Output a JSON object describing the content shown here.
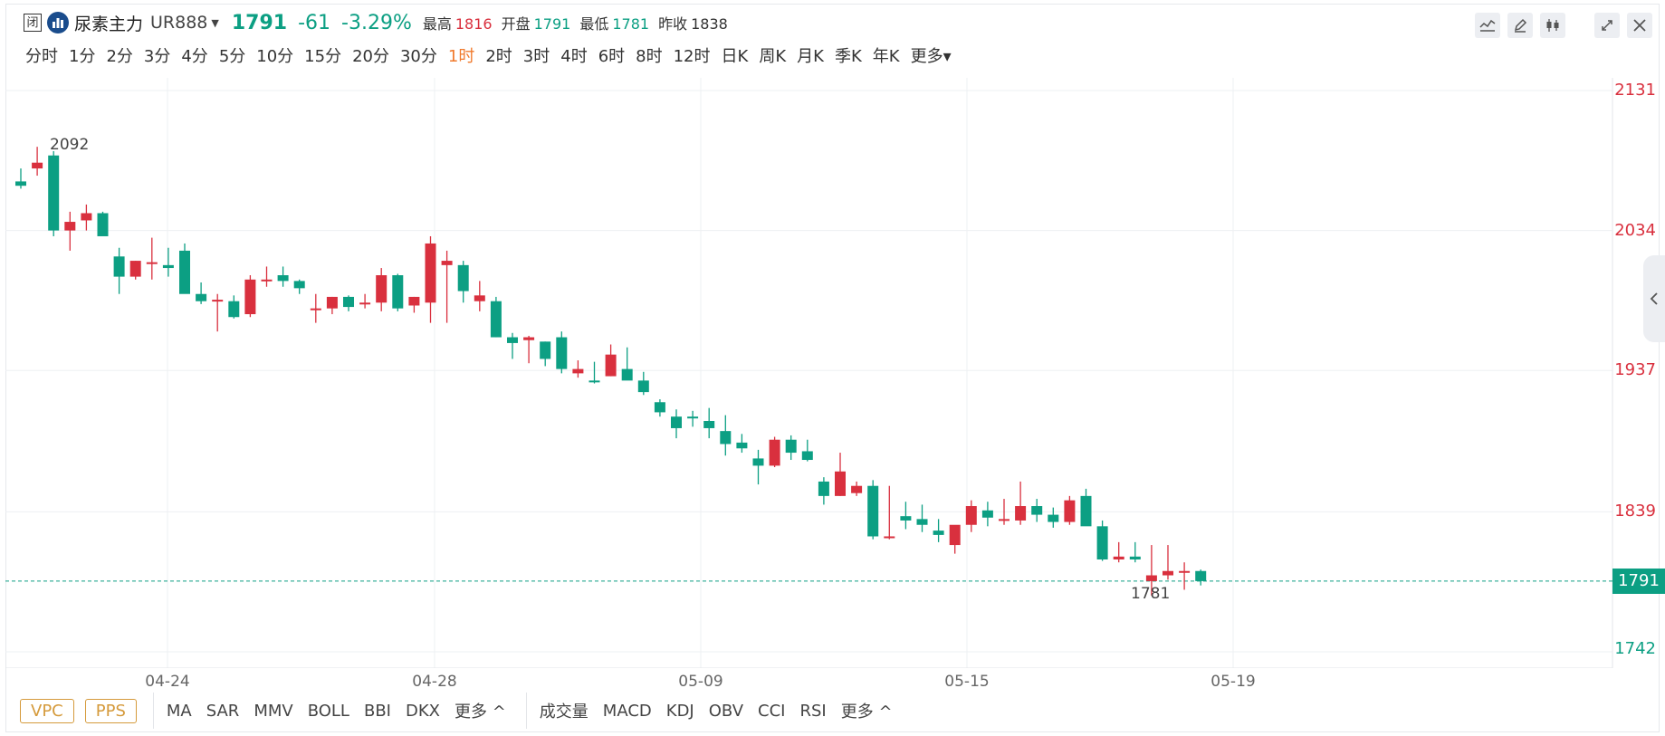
{
  "header": {
    "status": "闭",
    "name": "尿素主力",
    "code": "UR888",
    "last": "1791",
    "change": "-61",
    "change_pct": "-3.29%",
    "stats": [
      {
        "label": "最高",
        "value": "1816",
        "tone": "red"
      },
      {
        "label": "开盘",
        "value": "1791",
        "tone": "grn"
      },
      {
        "label": "最低",
        "value": "1781",
        "tone": "grn"
      },
      {
        "label": "昨收",
        "value": "1838",
        "tone": "gray"
      }
    ]
  },
  "periods": [
    "分时",
    "1分",
    "2分",
    "3分",
    "4分",
    "5分",
    "10分",
    "15分",
    "20分",
    "30分",
    "1时",
    "2时",
    "3时",
    "4时",
    "6时",
    "8时",
    "12时",
    "日K",
    "周K",
    "月K",
    "季K",
    "年K",
    "更多"
  ],
  "active_period": "1时",
  "tools": [
    "line-tool-icon",
    "pen-icon",
    "candle-style-icon",
    "fullscreen-icon",
    "close-icon"
  ],
  "colors": {
    "up": "#d9303e",
    "down": "#0c9f83",
    "accent": "#f07a2d"
  },
  "chart_data": {
    "type": "candlestick",
    "y_ticks": [
      "2131",
      "2034",
      "1937",
      "1839",
      "1742"
    ],
    "ylim": [
      1742,
      2131
    ],
    "x_ticks": [
      "04-24",
      "04-28",
      "05-09",
      "05-15",
      "05-19"
    ],
    "current_price": "1791",
    "max_label": "2092",
    "min_label": "1781",
    "candles": [
      [
        2068,
        2077,
        2063,
        2065
      ],
      [
        2077,
        2092,
        2072,
        2081
      ],
      [
        2086,
        2089,
        2030,
        2034
      ],
      [
        2034,
        2047,
        2020,
        2040
      ],
      [
        2041,
        2052,
        2034,
        2046
      ],
      [
        2046,
        2047,
        2033,
        2030
      ],
      [
        2016,
        2022,
        1990,
        2002
      ],
      [
        2002,
        2013,
        2000,
        2013
      ],
      [
        2012,
        2029,
        2000,
        2012
      ],
      [
        2010,
        2022,
        2002,
        2008
      ],
      [
        2020,
        2025,
        1992,
        1990
      ],
      [
        1990,
        1998,
        1983,
        1985
      ],
      [
        1986,
        1990,
        1964,
        1986
      ],
      [
        1985,
        1989,
        1973,
        1974
      ],
      [
        1976,
        2003,
        1974,
        2000
      ],
      [
        2000,
        2009,
        1995,
        2000
      ],
      [
        2003,
        2009,
        1995,
        1999
      ],
      [
        1999,
        2000,
        1990,
        1994
      ],
      [
        1980,
        1990,
        1970,
        1980
      ],
      [
        1980,
        1988,
        1976,
        1988
      ],
      [
        1988,
        1989,
        1978,
        1981
      ],
      [
        1983,
        1990,
        1980,
        1984
      ],
      [
        1984,
        2008,
        1978,
        2003
      ],
      [
        2003,
        2004,
        1978,
        1980
      ],
      [
        1982,
        1988,
        1977,
        1988
      ],
      [
        1984,
        2030,
        1970,
        2025
      ],
      [
        2010,
        2020,
        1970,
        2013
      ],
      [
        2010,
        2013,
        1984,
        1992
      ],
      [
        1985,
        1999,
        1978,
        1989
      ],
      [
        1985,
        1988,
        1960,
        1960
      ],
      [
        1960,
        1963,
        1945,
        1956
      ],
      [
        1958,
        1961,
        1942,
        1960
      ],
      [
        1957,
        1957,
        1940,
        1945
      ],
      [
        1960,
        1964,
        1935,
        1938
      ],
      [
        1935,
        1944,
        1932,
        1938
      ],
      [
        1930,
        1943,
        1928,
        1929
      ],
      [
        1933,
        1955,
        1933,
        1948
      ],
      [
        1938,
        1953,
        1932,
        1930
      ],
      [
        1930,
        1936,
        1920,
        1922
      ],
      [
        1915,
        1917,
        1905,
        1908
      ],
      [
        1905,
        1910,
        1890,
        1897
      ],
      [
        1905,
        1909,
        1898,
        1904
      ],
      [
        1902,
        1911,
        1890,
        1897
      ],
      [
        1895,
        1906,
        1878,
        1886
      ],
      [
        1887,
        1893,
        1880,
        1883
      ],
      [
        1876,
        1882,
        1858,
        1871
      ],
      [
        1871,
        1891,
        1870,
        1889
      ],
      [
        1889,
        1892,
        1875,
        1880
      ],
      [
        1881,
        1889,
        1874,
        1875
      ],
      [
        1860,
        1863,
        1844,
        1850
      ],
      [
        1850,
        1880,
        1850,
        1867
      ],
      [
        1852,
        1860,
        1850,
        1857
      ],
      [
        1857,
        1861,
        1820,
        1822
      ],
      [
        1822,
        1857,
        1820,
        1822
      ],
      [
        1836,
        1846,
        1827,
        1833
      ],
      [
        1834,
        1844,
        1825,
        1830
      ],
      [
        1826,
        1834,
        1818,
        1823
      ],
      [
        1816,
        1827,
        1810,
        1830
      ],
      [
        1830,
        1847,
        1825,
        1843
      ],
      [
        1840,
        1846,
        1829,
        1835
      ],
      [
        1834,
        1848,
        1830,
        1834
      ],
      [
        1833,
        1860,
        1830,
        1843
      ],
      [
        1843,
        1848,
        1832,
        1837
      ],
      [
        1837,
        1842,
        1828,
        1832
      ],
      [
        1832,
        1850,
        1830,
        1847
      ],
      [
        1850,
        1855,
        1830,
        1829
      ],
      [
        1829,
        1833,
        1805,
        1806
      ],
      [
        1806,
        1818,
        1804,
        1808
      ],
      [
        1808,
        1818,
        1804,
        1806
      ],
      [
        1791,
        1816,
        1781,
        1795
      ],
      [
        1795,
        1816,
        1792,
        1798
      ],
      [
        1798,
        1804,
        1785,
        1798
      ],
      [
        1798,
        1799,
        1788,
        1791
      ]
    ]
  },
  "bottom": {
    "pills": [
      "VPC",
      "PPS"
    ],
    "main_indicators": [
      "MA",
      "SAR",
      "MMV",
      "BOLL",
      "BBI",
      "DKX",
      "更多 ^"
    ],
    "sub_indicators": [
      "成交量",
      "MACD",
      "KDJ",
      "OBV",
      "CCI",
      "RSI",
      "更多 ^"
    ]
  }
}
